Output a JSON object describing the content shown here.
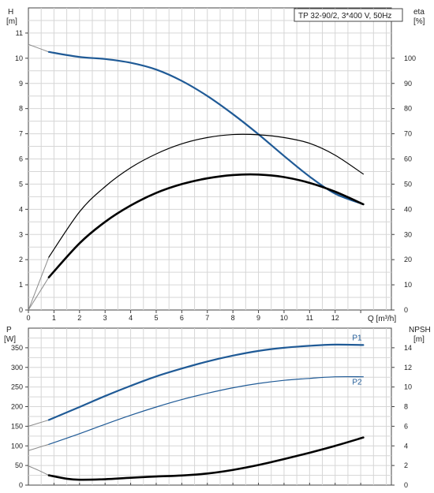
{
  "chart_data": [
    {
      "type": "line",
      "model_label": "TP 32-90/2, 3*400 V, 50Hz",
      "xlabel": "Q [m³/h]",
      "left_axis": {
        "label_top": "H",
        "label_unit": "[m]",
        "range": [
          0,
          12
        ],
        "ticks": [
          0,
          1,
          2,
          3,
          4,
          5,
          6,
          7,
          8,
          9,
          10,
          11
        ]
      },
      "right_axis": {
        "label_top": "eta",
        "label_unit": "[%]",
        "range": [
          0,
          120
        ],
        "ticks": [
          0,
          10,
          20,
          30,
          40,
          50,
          60,
          70,
          80,
          90,
          100
        ]
      },
      "x_range": [
        0,
        14.2
      ],
      "x_ticks": [
        0,
        1,
        2,
        3,
        4,
        5,
        6,
        7,
        8,
        9,
        10,
        11,
        12
      ],
      "grid": true,
      "colors": {
        "head": "#1f5a96",
        "eta": "#000000",
        "grid": "#d6d6d6",
        "extension": "#8c8c8c"
      },
      "series": [
        {
          "axis": "left",
          "role": "head",
          "thick": 2.2,
          "color": "#1f5a96",
          "x": [
            0.8,
            2,
            3,
            4,
            5,
            6,
            7,
            8,
            9,
            10,
            11,
            12,
            13.1
          ],
          "y": [
            10.25,
            10.05,
            9.97,
            9.82,
            9.55,
            9.1,
            8.5,
            7.78,
            6.98,
            6.12,
            5.3,
            4.62,
            4.2
          ]
        },
        {
          "axis": "right",
          "role": "eta-thin",
          "thick": 1.2,
          "color": "#000000",
          "x": [
            0.8,
            2,
            3,
            4,
            5,
            6,
            7,
            8,
            9,
            10,
            11,
            12,
            13.1
          ],
          "y": [
            21,
            39,
            49,
            56.5,
            62,
            66,
            68.5,
            69.7,
            69.6,
            68.5,
            66.2,
            61.5,
            54
          ]
        },
        {
          "axis": "right",
          "role": "eta-thick",
          "thick": 2.6,
          "color": "#000000",
          "x": [
            0.8,
            2,
            3,
            4,
            5,
            6,
            7,
            8,
            9,
            10,
            11,
            12,
            13.1
          ],
          "y": [
            13,
            26.5,
            35,
            41.5,
            46.5,
            50,
            52.3,
            53.6,
            53.8,
            52.8,
            50.5,
            47,
            42
          ]
        }
      ]
    },
    {
      "type": "line",
      "xlabel": "",
      "left_axis": {
        "label_top": "P",
        "label_unit": "[W]",
        "range": [
          0,
          400
        ],
        "ticks": [
          0,
          50,
          100,
          150,
          200,
          250,
          300,
          350
        ]
      },
      "right_axis": {
        "label_top": "NPSH",
        "label_unit": "[m]",
        "range": [
          0,
          16
        ],
        "ticks": [
          0,
          2,
          4,
          6,
          8,
          10,
          12,
          14
        ]
      },
      "x_range": [
        0,
        14.2
      ],
      "grid": true,
      "series": [
        {
          "name": "P1",
          "axis": "left",
          "thick": 2.2,
          "color": "#1f5a96",
          "x": [
            0.8,
            2,
            3,
            4,
            5,
            6,
            7,
            8,
            9,
            10,
            11,
            12,
            13.1
          ],
          "y": [
            166,
            199,
            227,
            253,
            277,
            297,
            315,
            330,
            342,
            350,
            355,
            358,
            357
          ]
        },
        {
          "name": "P2",
          "axis": "left",
          "thick": 1.2,
          "color": "#1f5a96",
          "x": [
            0.8,
            2,
            3,
            4,
            5,
            6,
            7,
            8,
            9,
            10,
            11,
            12,
            13.1
          ],
          "y": [
            104,
            131,
            155,
            178,
            199,
            218,
            234,
            248,
            259,
            267,
            272,
            276,
            276
          ]
        },
        {
          "axis": "right",
          "role": "npsh",
          "thick": 2.6,
          "color": "#000000",
          "x": [
            0.8,
            1.5,
            2,
            3,
            4,
            5,
            6,
            7,
            8,
            9,
            10,
            11,
            12,
            13.1
          ],
          "y": [
            1.0,
            0.65,
            0.55,
            0.6,
            0.75,
            0.88,
            0.98,
            1.18,
            1.55,
            2.05,
            2.65,
            3.3,
            4.0,
            4.85
          ]
        }
      ]
    }
  ]
}
